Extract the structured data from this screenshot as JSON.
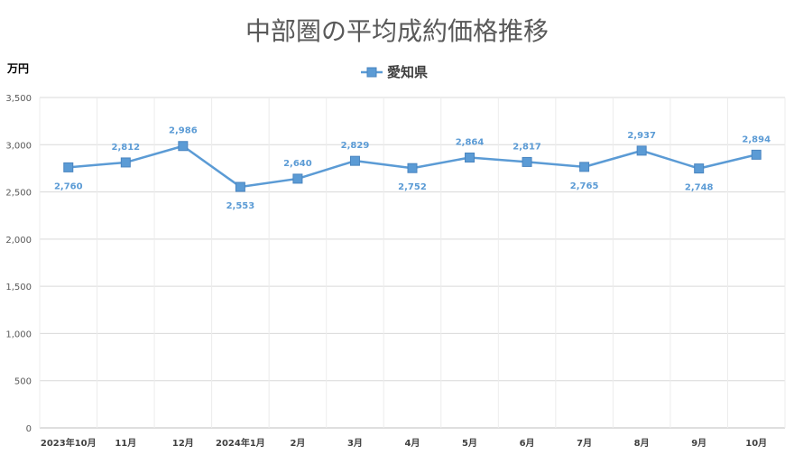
{
  "chart_data": {
    "type": "line",
    "title": "中部圏の平均成約価格推移",
    "ylabel": "万円",
    "xlabel": "",
    "categories": [
      "2023年10月",
      "11月",
      "12月",
      "2024年1月",
      "2月",
      "3月",
      "4月",
      "5月",
      "6月",
      "7月",
      "8月",
      "9月",
      "10月"
    ],
    "series": [
      {
        "name": "愛知県",
        "color": "#5b9bd5",
        "values": [
          2760,
          2812,
          2986,
          2553,
          2640,
          2829,
          2752,
          2864,
          2817,
          2765,
          2937,
          2748,
          2894
        ],
        "labels": [
          "2,760",
          "2,812",
          "2,986",
          "2,553",
          "2,640",
          "2,829",
          "2,752",
          "2,864",
          "2,817",
          "2,765",
          "2,937",
          "2,748",
          "2,894"
        ]
      }
    ],
    "ylim": [
      0,
      3500
    ],
    "yticks": [
      0,
      500,
      1000,
      1500,
      2000,
      2500,
      3000,
      3500
    ],
    "ytick_labels": [
      "0",
      "500",
      "1,000",
      "1,500",
      "2,000",
      "2,500",
      "3,000",
      "3,500"
    ],
    "grid": true,
    "legend": "top-center",
    "marker": "square"
  }
}
